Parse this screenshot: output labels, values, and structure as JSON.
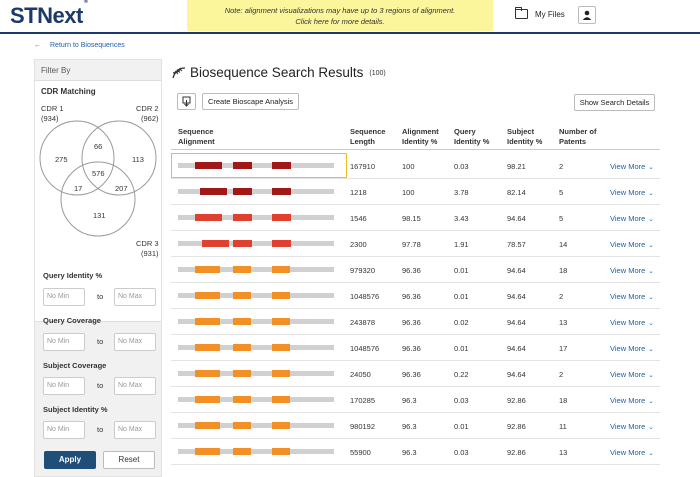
{
  "header": {
    "logo_text": "STNext",
    "logo_mark": "®",
    "notice_line1": "Note: alignment visualizations may have up to 3 regions of alignment.",
    "notice_line2": "Click here for more details.",
    "my_files_label": "My Files",
    "icons": {
      "files": "folder-icon",
      "user": "user-icon"
    }
  },
  "nav": {
    "back_arrow": "←",
    "return_label": "Return to Biosequences"
  },
  "sidebar": {
    "filter_by": "Filter By",
    "cdr_matching": "CDR Matching",
    "cdr1": {
      "label": "CDR 1",
      "count": "(934)"
    },
    "cdr2": {
      "label": "CDR 2",
      "count": "(962)"
    },
    "cdr3": {
      "label": "CDR 3",
      "count": "(931)"
    },
    "venn": {
      "only1": "275",
      "only2": "113",
      "only3": "131",
      "n12": "66",
      "n13": "17",
      "n23": "207",
      "n123": "576"
    },
    "filters": [
      {
        "label": "Query Identity %",
        "min_placeholder": "No Min",
        "to": "to",
        "max_placeholder": "No Max"
      },
      {
        "label": "Query Coverage",
        "min_placeholder": "No Min",
        "to": "to",
        "max_placeholder": "No Max"
      },
      {
        "label": "Subject Coverage",
        "min_placeholder": "No Min",
        "to": "to",
        "max_placeholder": "No Max"
      },
      {
        "label": "Subject Identity %",
        "min_placeholder": "No Min",
        "to": "to",
        "max_placeholder": "No Max"
      }
    ],
    "apply_label": "Apply",
    "reset_label": "Reset"
  },
  "main": {
    "title": "Biosequence Search Results",
    "count": "(100)",
    "title_icon": "dna-icon",
    "create_bioscape_label": "Create Bioscape Analysis",
    "show_search_label": "Show Search Details",
    "columns": {
      "alignment_1": "Sequence",
      "alignment_2": "Alignment",
      "length_1": "Sequence",
      "length_2": "Length",
      "align_id_1": "Alignment",
      "align_id_2": "Identity %",
      "query_id_1": "Query",
      "query_id_2": "Identity %",
      "subject_id_1": "Subject",
      "subject_id_2": "Identity %",
      "patents_1": "Number of",
      "patents_2": "Patents"
    },
    "view_more": "View More",
    "chevron": "⌄",
    "colors": {
      "dark_red": "#a01818",
      "red": "#e04030",
      "orange": "#f29025",
      "track": "#d0d0d0",
      "selection": "#f0c020"
    },
    "rows": [
      {
        "length": "167910",
        "align_id": "100",
        "query_id": "0.03",
        "subject_id": "98.21",
        "patents": "2",
        "style": "dark_red"
      },
      {
        "length": "1218",
        "align_id": "100",
        "query_id": "3.78",
        "subject_id": "82.14",
        "patents": "5",
        "style": "dark_red"
      },
      {
        "length": "1546",
        "align_id": "98.15",
        "query_id": "3.43",
        "subject_id": "94.64",
        "patents": "5",
        "style": "red"
      },
      {
        "length": "2300",
        "align_id": "97.78",
        "query_id": "1.91",
        "subject_id": "78.57",
        "patents": "14",
        "style": "red"
      },
      {
        "length": "979320",
        "align_id": "96.36",
        "query_id": "0.01",
        "subject_id": "94.64",
        "patents": "18",
        "style": "orange"
      },
      {
        "length": "1048576",
        "align_id": "96.36",
        "query_id": "0.01",
        "subject_id": "94.64",
        "patents": "2",
        "style": "orange"
      },
      {
        "length": "243878",
        "align_id": "96.36",
        "query_id": "0.02",
        "subject_id": "94.64",
        "patents": "13",
        "style": "orange"
      },
      {
        "length": "1048576",
        "align_id": "96.36",
        "query_id": "0.01",
        "subject_id": "94.64",
        "patents": "17",
        "style": "orange"
      },
      {
        "length": "24050",
        "align_id": "96.36",
        "query_id": "0.22",
        "subject_id": "94.64",
        "patents": "2",
        "style": "orange"
      },
      {
        "length": "170285",
        "align_id": "96.3",
        "query_id": "0.03",
        "subject_id": "92.86",
        "patents": "18",
        "style": "orange"
      },
      {
        "length": "980192",
        "align_id": "96.3",
        "query_id": "0.01",
        "subject_id": "92.86",
        "patents": "11",
        "style": "orange"
      },
      {
        "length": "55900",
        "align_id": "96.3",
        "query_id": "0.03",
        "subject_id": "92.86",
        "patents": "13",
        "style": "orange"
      }
    ]
  }
}
